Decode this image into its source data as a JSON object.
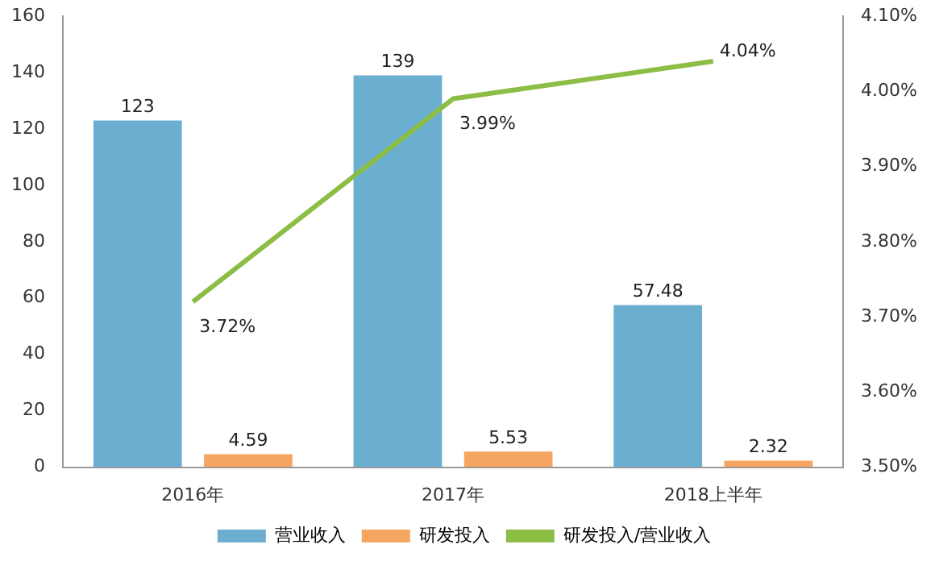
{
  "chart_data": {
    "type": "bar",
    "categories": [
      "2016年",
      "2017年",
      "2018上半年"
    ],
    "series": [
      {
        "name": "营业收入",
        "color": "#6aaed0",
        "values": [
          123,
          139,
          57.48
        ],
        "value_labels": [
          "123",
          "139",
          "57.48"
        ]
      },
      {
        "name": "研发投入",
        "color": "#f5a462",
        "values": [
          4.59,
          5.53,
          2.32
        ],
        "value_labels": [
          "4.59",
          "5.53",
          "2.32"
        ]
      },
      {
        "name": "研发投入/营业收入",
        "type": "line",
        "axis": "y2",
        "color": "#8cbd44",
        "values": [
          3.72,
          3.99,
          4.04
        ],
        "value_labels": [
          "3.72%",
          "3.99%",
          "4.04%"
        ]
      }
    ],
    "ylim": [
      0,
      160
    ],
    "yticks": [
      0,
      20,
      40,
      60,
      80,
      100,
      120,
      140,
      160
    ],
    "y2lim": [
      3.5,
      4.1
    ],
    "y2ticks": [
      {
        "value": 3.5,
        "label": "3.50%"
      },
      {
        "value": 3.6,
        "label": "3.60%"
      },
      {
        "value": 3.7,
        "label": "3.70%"
      },
      {
        "value": 3.8,
        "label": "3.80%"
      },
      {
        "value": 3.9,
        "label": "3.90%"
      },
      {
        "value": 4.0,
        "label": "4.00%"
      },
      {
        "value": 4.1,
        "label": "4.10%"
      }
    ],
    "grid": false,
    "legend": "bottom",
    "marker": "none"
  }
}
